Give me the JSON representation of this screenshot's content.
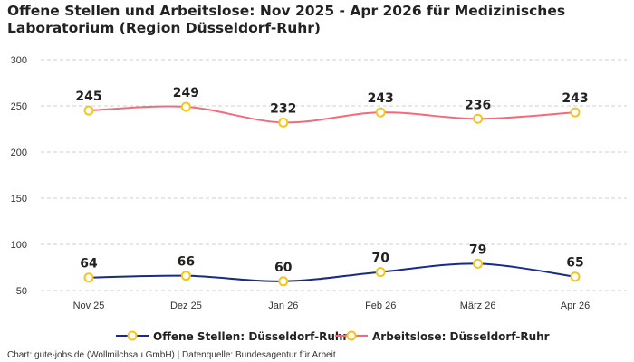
{
  "title": "Offene Stellen und Arbeitslose: Nov 2025 - Apr 2026 für Medizinisches Laboratorium (Region Düsseldorf-Ruhr)",
  "footer": "Chart: gute-jobs.de (Wollmilchsau GmbH) | Datenquelle: Bundesagentur für Arbeit",
  "chart_data": {
    "type": "line",
    "title": "Offene Stellen und Arbeitslose: Nov 2025 - Apr 2026 für Medizinisches Laboratorium (Region Düsseldorf-Ruhr)",
    "categories": [
      "Nov 25",
      "Dez 25",
      "Jan 26",
      "Feb 26",
      "März 26",
      "Apr 26"
    ],
    "series": [
      {
        "name": "Offene Stellen: Düsseldorf-Ruhr",
        "values": [
          64,
          66,
          60,
          70,
          79,
          65
        ],
        "color": "#1a2a8c"
      },
      {
        "name": "Arbeitslose: Düsseldorf-Ruhr",
        "values": [
          245,
          249,
          232,
          243,
          236,
          243
        ],
        "color": "#f26b7d"
      }
    ],
    "marker_color": "#f5c518",
    "yticks": [
      50,
      100,
      150,
      200,
      250,
      300
    ],
    "ylim": [
      50,
      300
    ],
    "grid": true,
    "legend_position": "bottom",
    "xlabel": "",
    "ylabel": ""
  }
}
